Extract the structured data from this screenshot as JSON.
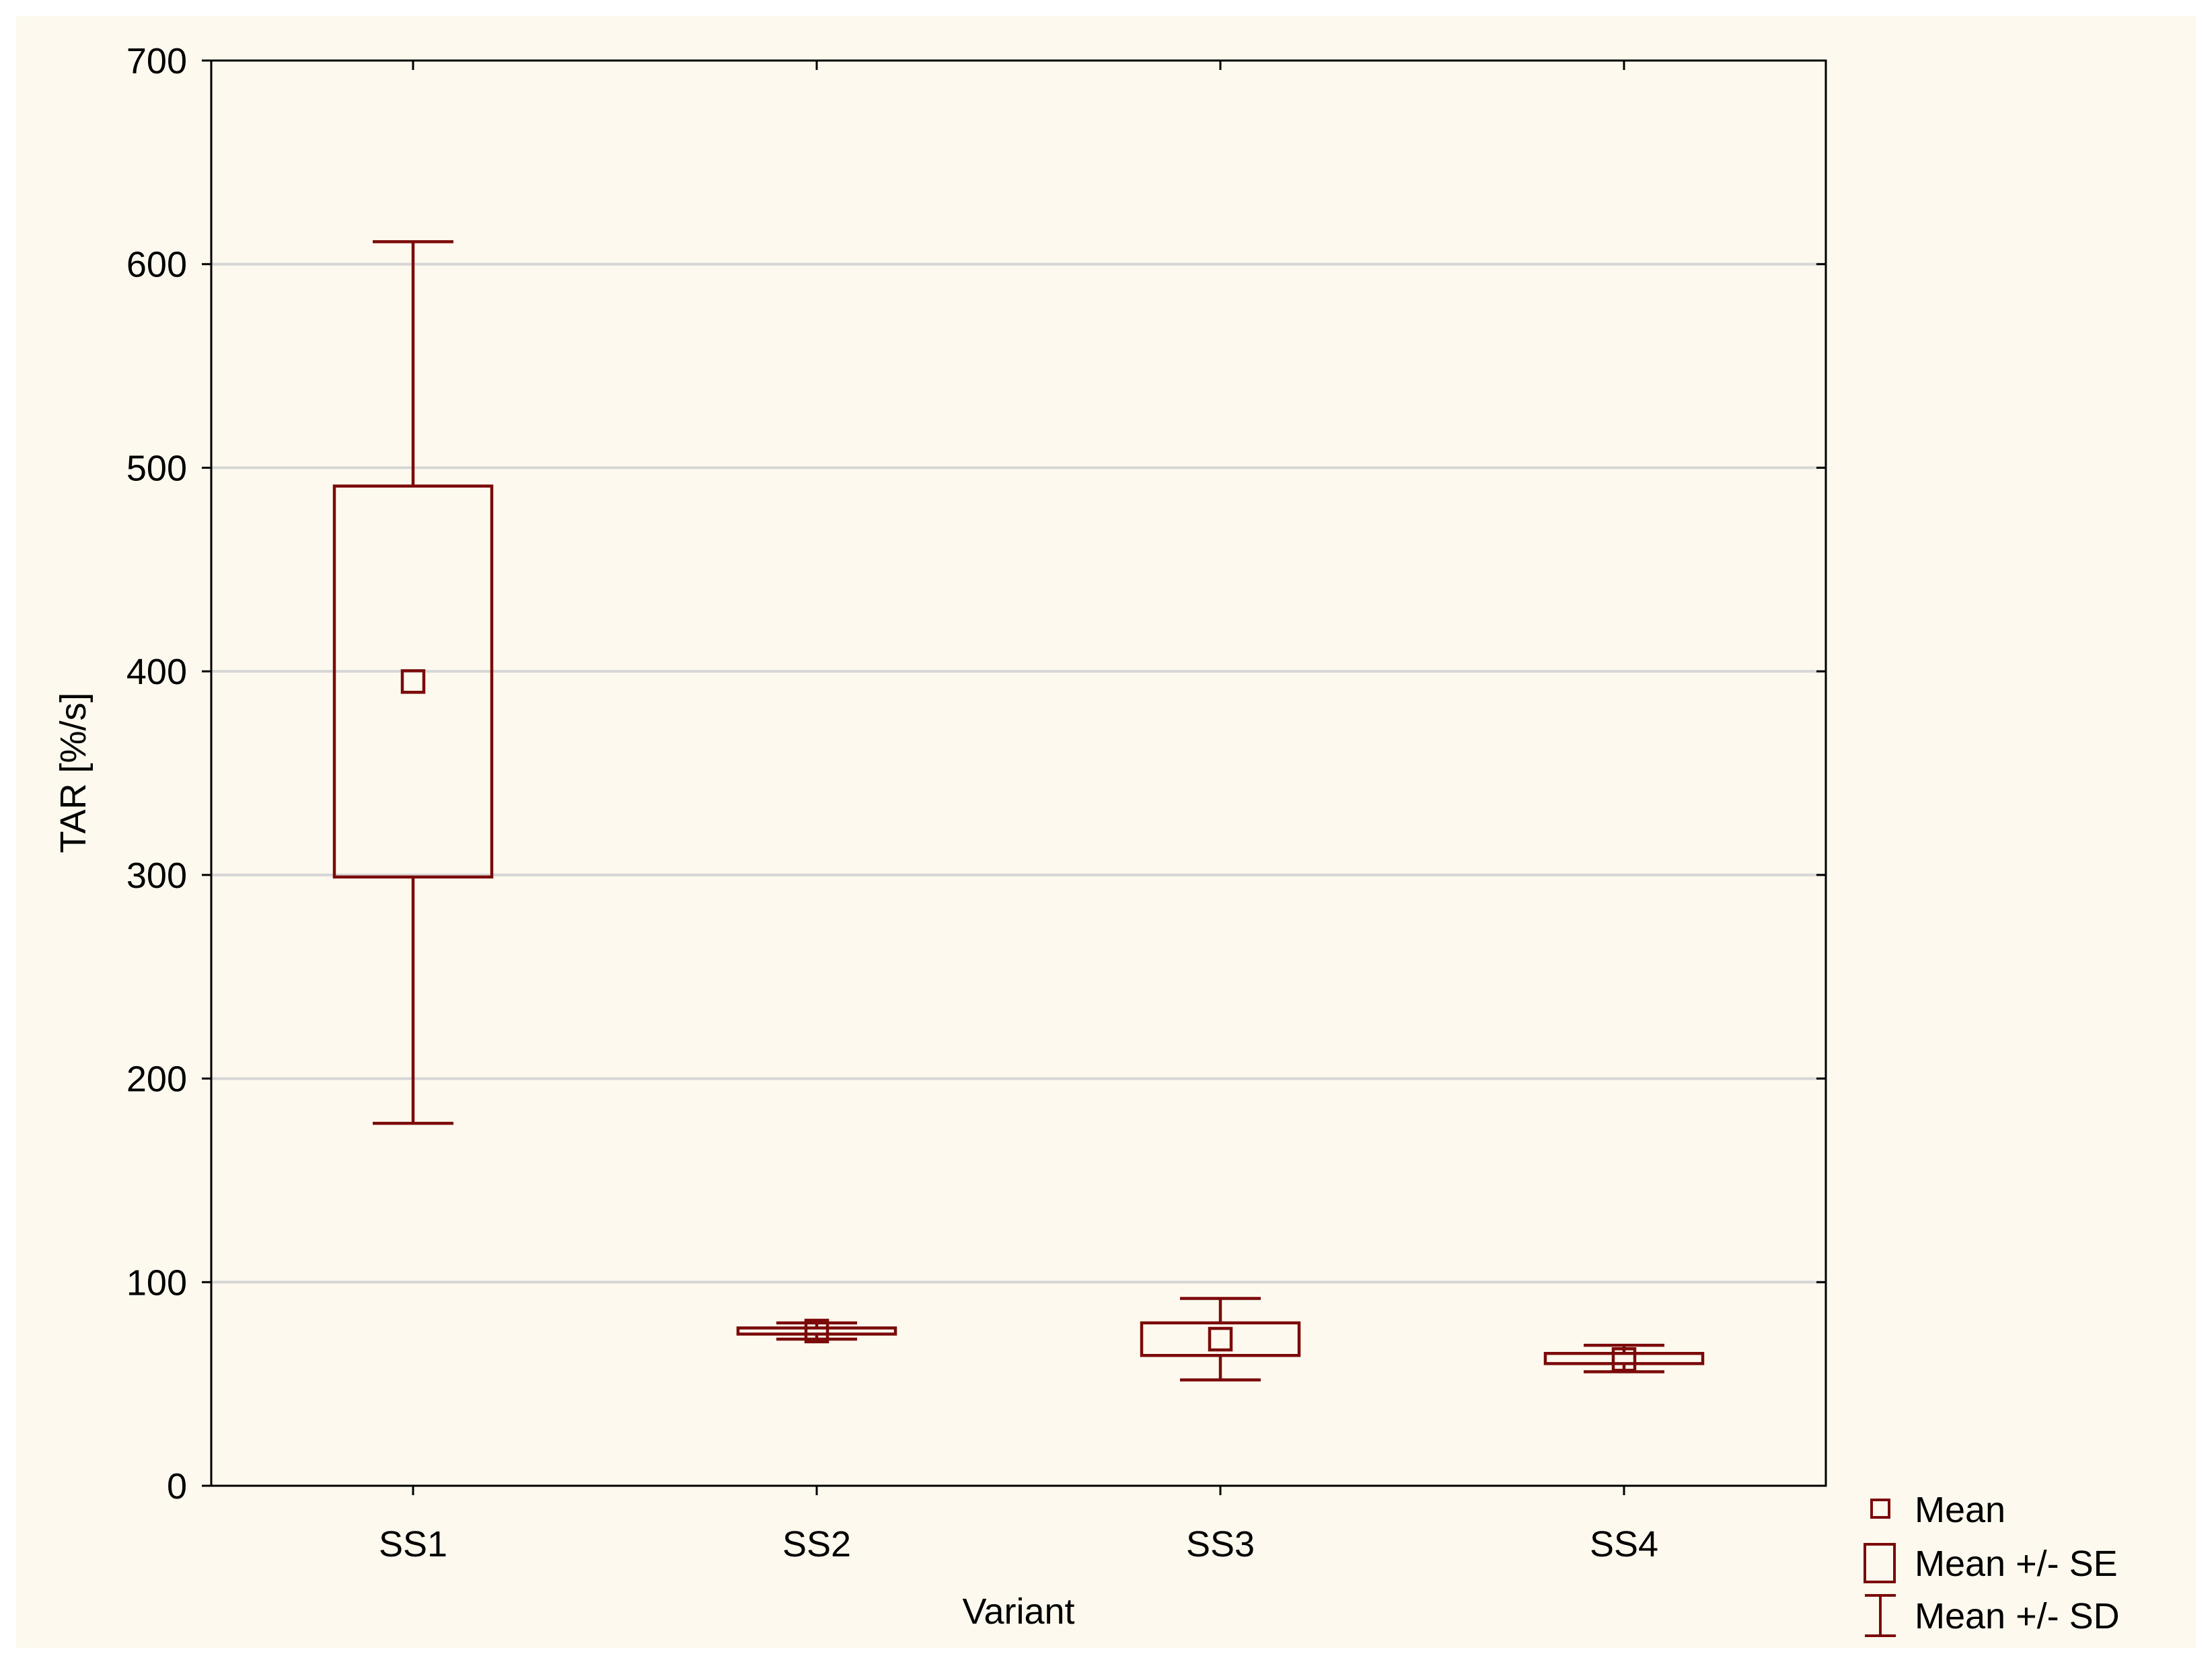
{
  "chart_data": {
    "type": "box",
    "xlabel": "Variant",
    "ylabel": "TAR  [%/s]",
    "categories": [
      "SS1",
      "SS2",
      "SS3",
      "SS4"
    ],
    "ylim": [
      0,
      700
    ],
    "yticks": [
      0,
      100,
      200,
      300,
      400,
      500,
      600,
      700
    ],
    "grid": true,
    "legend_position": "bottom-right",
    "series_color": "#7b0a0a",
    "boxes": [
      {
        "category": "SS1",
        "mean": 395,
        "se_low": 299,
        "se_high": 491,
        "sd_low": 178,
        "sd_high": 611
      },
      {
        "category": "SS2",
        "mean": 76,
        "se_low": 74.5,
        "se_high": 77.5,
        "sd_low": 72,
        "sd_high": 80
      },
      {
        "category": "SS3",
        "mean": 72,
        "se_low": 64,
        "se_high": 80,
        "sd_low": 52,
        "sd_high": 92
      },
      {
        "category": "SS4",
        "mean": 62,
        "se_low": 60,
        "se_high": 65,
        "sd_low": 56,
        "sd_high": 69
      }
    ],
    "legend": [
      {
        "label": "Mean",
        "symbol": "mean"
      },
      {
        "label": "Mean +/- SE",
        "symbol": "se"
      },
      {
        "label": "Mean +/- SD",
        "symbol": "sd"
      }
    ]
  }
}
